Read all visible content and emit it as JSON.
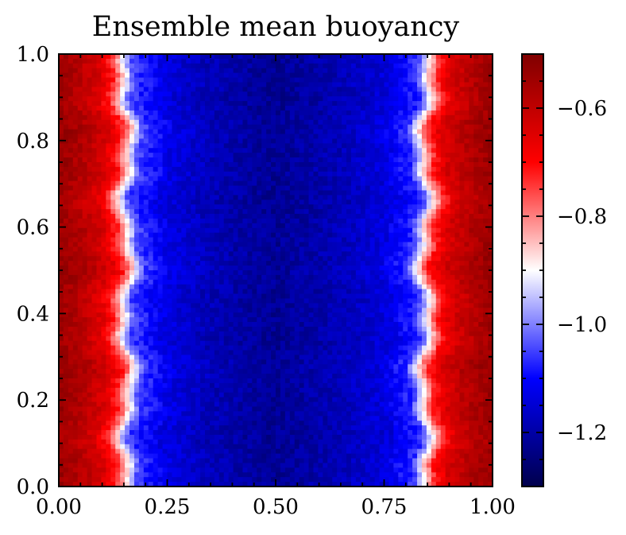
{
  "chart_data": {
    "type": "heatmap",
    "title": "Ensemble mean buoyancy",
    "xlabel": "",
    "ylabel": "",
    "xlim": [
      0.0,
      1.0
    ],
    "ylim": [
      0.0,
      1.0
    ],
    "x_ticks": [
      "0.00",
      "0.25",
      "0.50",
      "0.75",
      "1.00"
    ],
    "y_ticks": [
      "0.0",
      "0.2",
      "0.4",
      "0.6",
      "0.8",
      "1.0"
    ],
    "colormap": "seismic",
    "colorbar": {
      "vmin": -1.3,
      "vmax": -0.5,
      "ticks": [
        -1.2,
        -1.0,
        -0.8,
        -0.6
      ],
      "tick_labels": [
        "−1.2",
        "−1.0",
        "−0.8",
        "−0.6"
      ]
    },
    "field_profile": {
      "description": "buoyancy vs x (approximately uniform in y)",
      "x": [
        0.0,
        0.05,
        0.1,
        0.13,
        0.155,
        0.18,
        0.25,
        0.35,
        0.5,
        0.65,
        0.75,
        0.82,
        0.845,
        0.87,
        0.9,
        0.95,
        1.0
      ],
      "b": [
        -0.54,
        -0.58,
        -0.64,
        -0.72,
        -0.88,
        -1.05,
        -1.13,
        -1.18,
        -1.22,
        -1.18,
        -1.14,
        -1.06,
        -0.88,
        -0.72,
        -0.64,
        -0.58,
        -0.54
      ]
    }
  }
}
